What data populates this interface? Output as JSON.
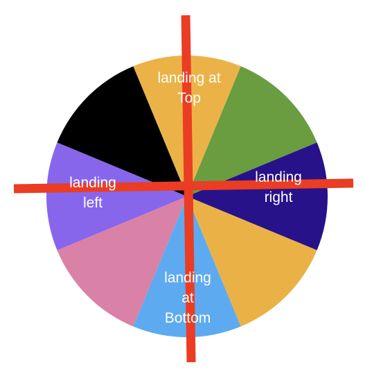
{
  "wheel": {
    "segments": [
      {
        "color": "#ebb347",
        "label_lines": [
          "landing at",
          "Top"
        ]
      },
      {
        "color": "#6a9c40",
        "label_lines": []
      },
      {
        "color": "#28128a",
        "label_lines": [
          "landing",
          "right"
        ]
      },
      {
        "color": "#eab246",
        "label_lines": []
      },
      {
        "color": "#5eaaf0",
        "label_lines": [
          "landing",
          "at",
          "Bottom"
        ]
      },
      {
        "color": "#d981a6",
        "label_lines": []
      },
      {
        "color": "#8866ec",
        "label_lines": [
          "landing",
          "left"
        ]
      },
      {
        "color": "#000000",
        "label_lines": []
      }
    ],
    "cross_color": "#ea3d24"
  }
}
